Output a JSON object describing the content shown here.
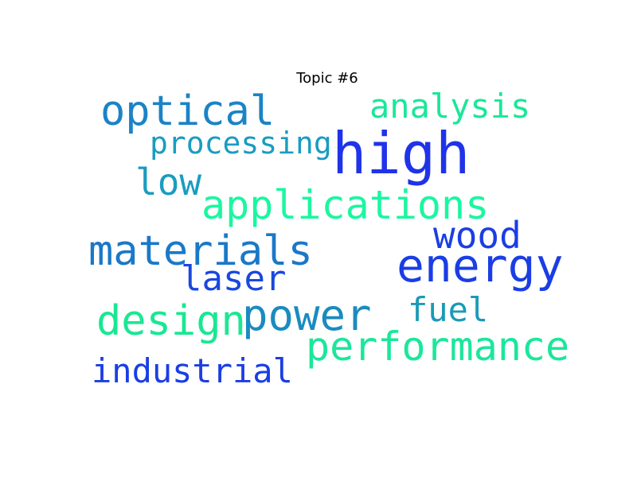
{
  "title": "Topic #6",
  "words": {
    "high": "high",
    "optical": "optical",
    "analysis": "analysis",
    "processing": "processing",
    "low": "low",
    "applications": "applications",
    "wood": "wood",
    "materials": "materials",
    "energy": "energy",
    "laser": "laser",
    "fuel": "fuel",
    "design": "design",
    "power": "power",
    "performance": "performance",
    "industrial": "industrial"
  }
}
